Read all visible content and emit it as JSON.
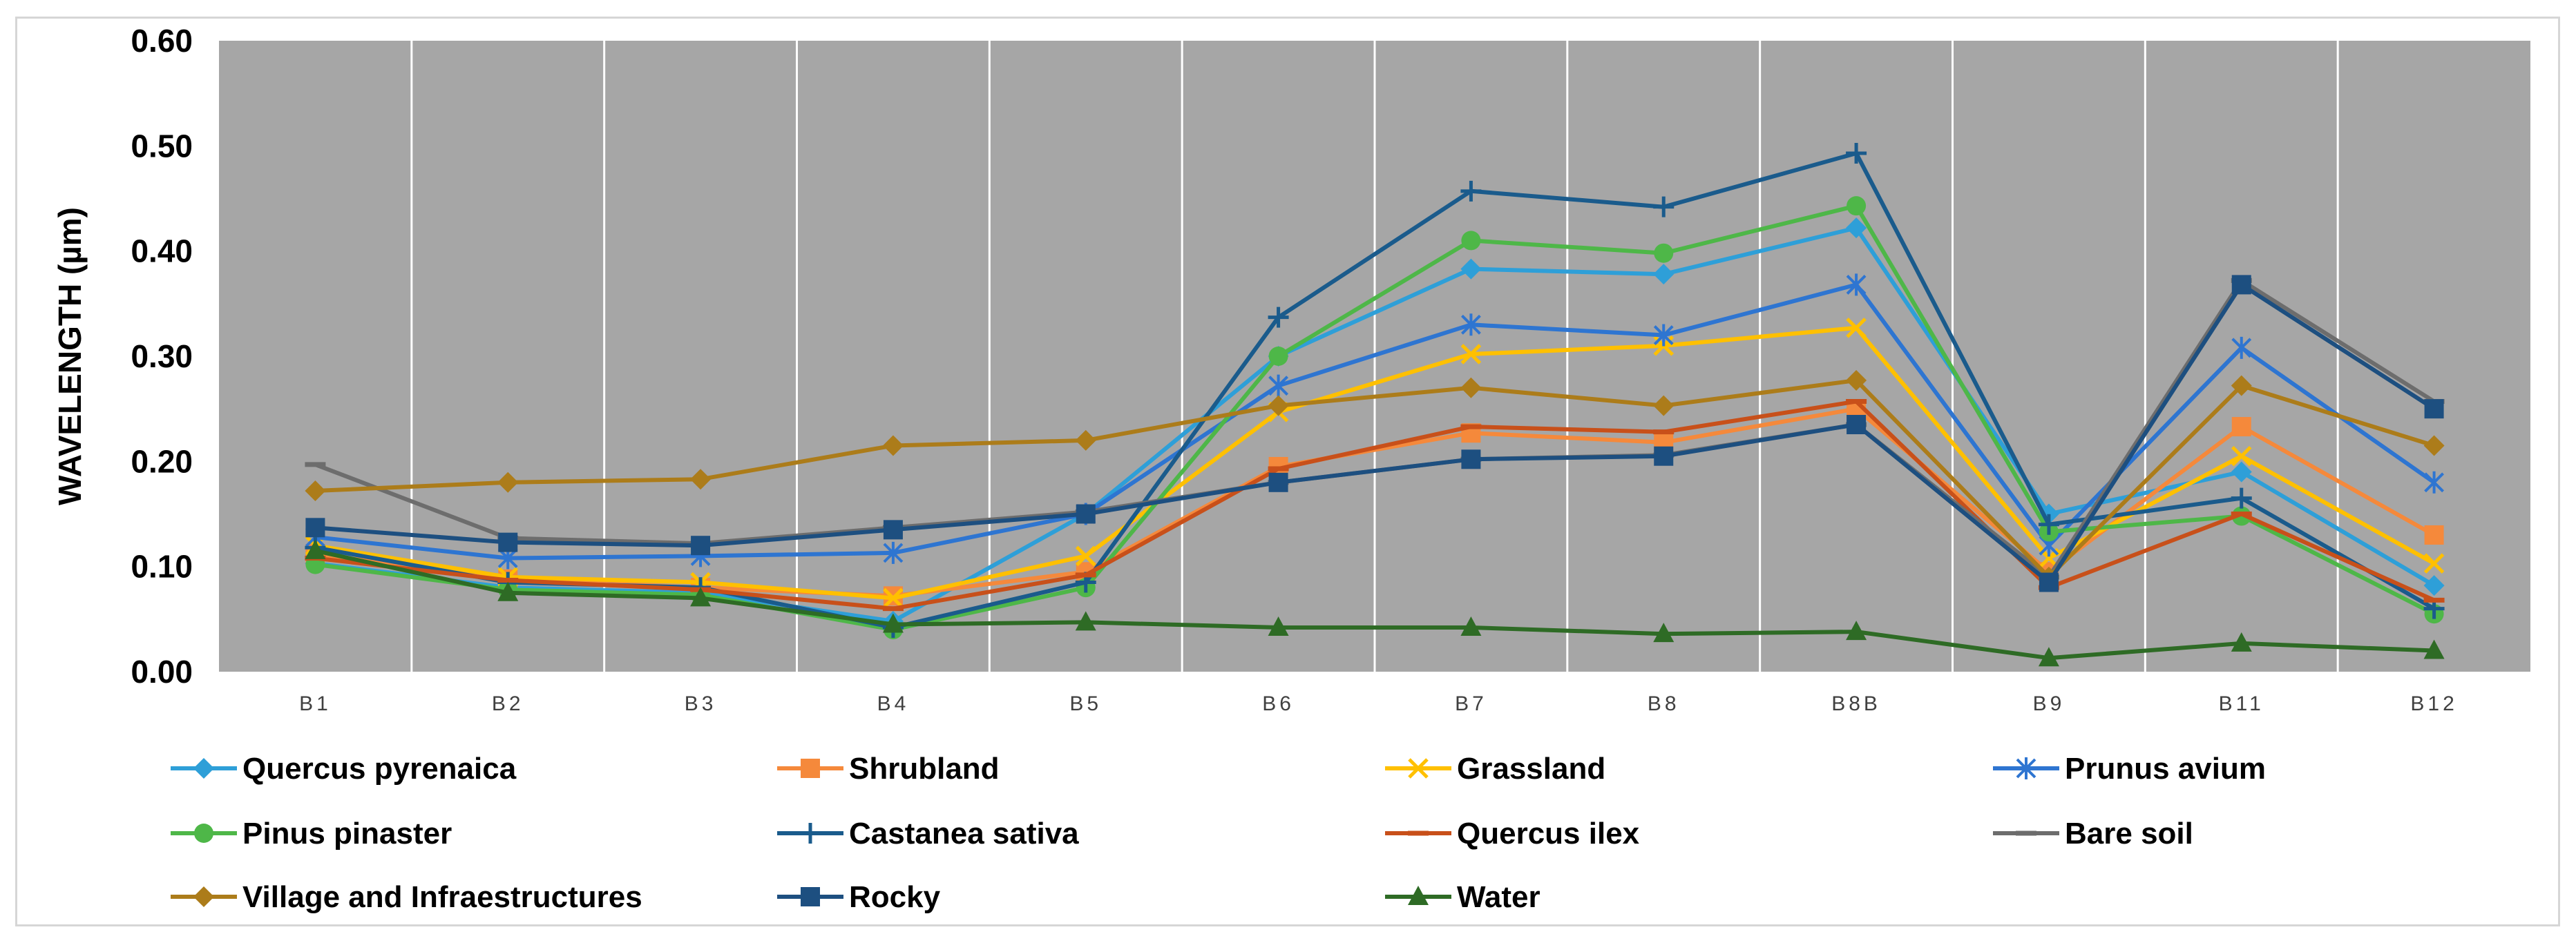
{
  "chart_data": {
    "type": "line",
    "title": "",
    "xlabel": "",
    "ylabel": "WAVELENGTH (µm)",
    "ylim": [
      0,
      0.6
    ],
    "yticks": [
      "0.00",
      "0.10",
      "0.20",
      "0.30",
      "0.40",
      "0.50",
      "0.60"
    ],
    "categories": [
      "B1",
      "B2",
      "B3",
      "B4",
      "B5",
      "B6",
      "B7",
      "B8",
      "B8B",
      "B9",
      "B11",
      "B12"
    ],
    "legend_position": "bottom",
    "series": [
      {
        "name": "Quercus pyrenaica",
        "color": "#2e9fd8",
        "marker": "diamond",
        "values": [
          0.103,
          0.08,
          0.075,
          0.048,
          0.15,
          0.3,
          0.383,
          0.378,
          0.422,
          0.15,
          0.19,
          0.082
        ]
      },
      {
        "name": "Shrubland",
        "color": "#f5893b",
        "marker": "square",
        "values": [
          0.112,
          0.088,
          0.08,
          0.072,
          0.095,
          0.195,
          0.227,
          0.218,
          0.25,
          0.095,
          0.233,
          0.13
        ]
      },
      {
        "name": "Grassland",
        "color": "#ffc000",
        "marker": "x",
        "values": [
          0.12,
          0.09,
          0.085,
          0.07,
          0.11,
          0.247,
          0.302,
          0.31,
          0.327,
          0.108,
          0.205,
          0.103
        ]
      },
      {
        "name": "Prunus avium",
        "color": "#2e75d1",
        "marker": "star",
        "values": [
          0.128,
          0.108,
          0.11,
          0.113,
          0.15,
          0.272,
          0.33,
          0.32,
          0.368,
          0.12,
          0.308,
          0.18
        ]
      },
      {
        "name": "Pinus pinaster",
        "color": "#4eb748",
        "marker": "circle",
        "values": [
          0.102,
          0.078,
          0.073,
          0.04,
          0.08,
          0.3,
          0.41,
          0.398,
          0.443,
          0.133,
          0.148,
          0.055
        ]
      },
      {
        "name": "Castanea sativa",
        "color": "#1a5b8c",
        "marker": "plus",
        "values": [
          0.118,
          0.085,
          0.08,
          0.042,
          0.085,
          0.337,
          0.457,
          0.442,
          0.493,
          0.14,
          0.165,
          0.06
        ]
      },
      {
        "name": "Quercus ilex",
        "color": "#c8501a",
        "marker": "dash",
        "values": [
          0.108,
          0.087,
          0.078,
          0.06,
          0.092,
          0.193,
          0.233,
          0.228,
          0.257,
          0.08,
          0.15,
          0.068
        ]
      },
      {
        "name": "Bare soil",
        "color": "#6d6d6d",
        "marker": "dash",
        "values": [
          0.197,
          0.127,
          0.122,
          0.137,
          0.152,
          0.18,
          0.202,
          0.206,
          0.235,
          0.09,
          0.372,
          0.257
        ]
      },
      {
        "name": "Village and Infraestructures",
        "color": "#ac7c1a",
        "marker": "diamond",
        "values": [
          0.172,
          0.18,
          0.183,
          0.215,
          0.22,
          0.253,
          0.27,
          0.253,
          0.277,
          0.09,
          0.272,
          0.215
        ]
      },
      {
        "name": "Rocky",
        "color": "#1d4f80",
        "marker": "square",
        "values": [
          0.137,
          0.123,
          0.12,
          0.135,
          0.15,
          0.18,
          0.202,
          0.205,
          0.235,
          0.085,
          0.368,
          0.25
        ]
      },
      {
        "name": "Water",
        "color": "#2e6b25",
        "marker": "triangle",
        "values": [
          0.115,
          0.075,
          0.07,
          0.045,
          0.047,
          0.042,
          0.042,
          0.036,
          0.038,
          0.013,
          0.027,
          0.02
        ]
      }
    ]
  }
}
